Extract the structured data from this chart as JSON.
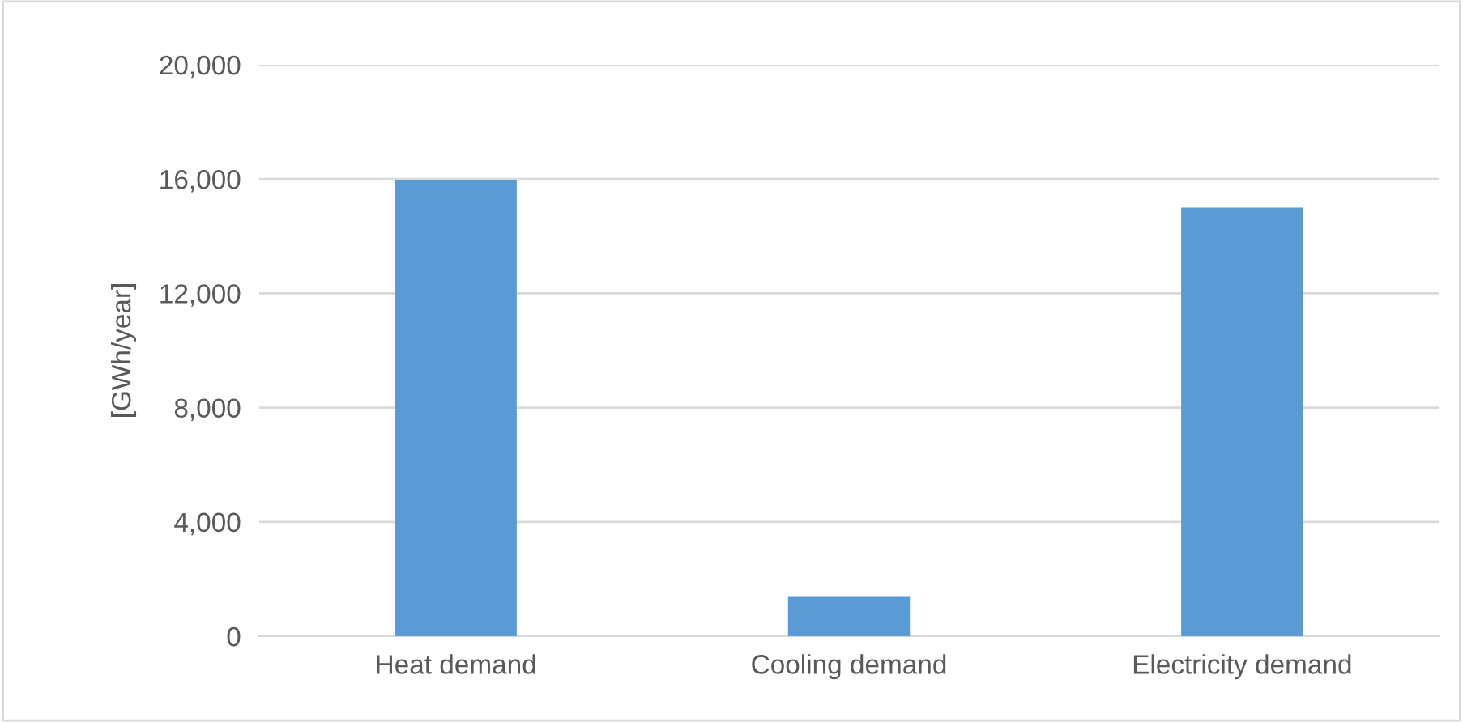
{
  "chart_data": {
    "type": "bar",
    "ylabel": "[GWh/year]",
    "categories": [
      "Heat demand",
      "Cooling demand",
      "Electricity demand"
    ],
    "values": [
      15950,
      1400,
      15000
    ],
    "color": "#5b9bd5",
    "ylim": [
      0,
      20000
    ],
    "yticks": [
      {
        "value": 0,
        "label": "0"
      },
      {
        "value": 4000,
        "label": "4,000"
      },
      {
        "value": 8000,
        "label": "8,000"
      },
      {
        "value": 12000,
        "label": "12,000"
      },
      {
        "value": 16000,
        "label": "16,000"
      },
      {
        "value": 20000,
        "label": "20,000"
      }
    ],
    "grid": "y"
  }
}
